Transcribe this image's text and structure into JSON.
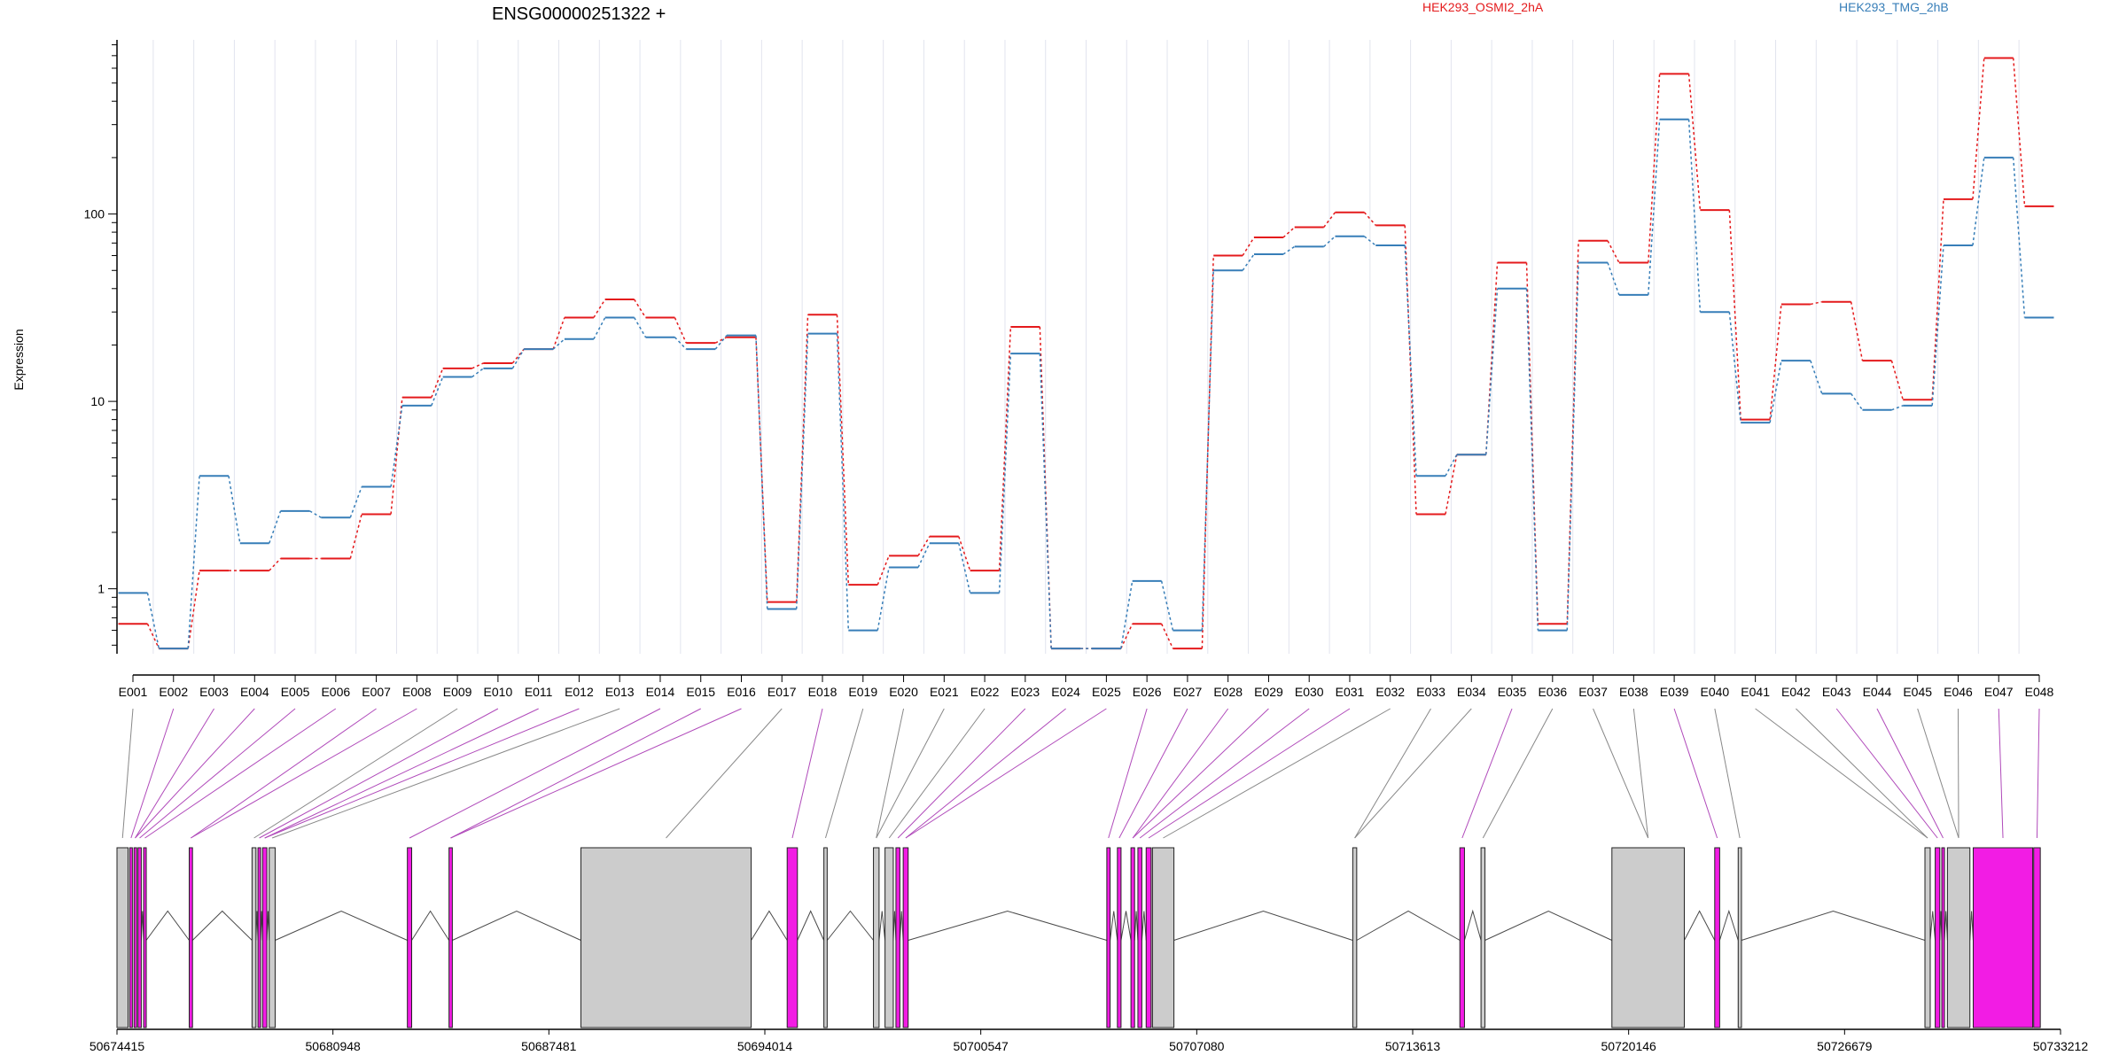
{
  "chart_data": {
    "type": "line",
    "title": "ENSG00000251322 +",
    "ylabel": "Expression",
    "y_scale": "log",
    "ylim": [
      0.45,
      850
    ],
    "y_ticks": [
      1,
      10,
      100
    ],
    "y_tick_labels": [
      "1",
      "10",
      "100"
    ],
    "categories": [
      "E001",
      "E002",
      "E003",
      "E004",
      "E005",
      "E006",
      "E007",
      "E008",
      "E009",
      "E010",
      "E011",
      "E012",
      "E013",
      "E014",
      "E015",
      "E016",
      "E017",
      "E018",
      "E019",
      "E020",
      "E021",
      "E022",
      "E023",
      "E024",
      "E025",
      "E026",
      "E027",
      "E028",
      "E029",
      "E030",
      "E031",
      "E032",
      "E033",
      "E034",
      "E035",
      "E036",
      "E037",
      "E038",
      "E039",
      "E040",
      "E041",
      "E042",
      "E043",
      "E044",
      "E045",
      "E046",
      "E047",
      "E048"
    ],
    "series": [
      {
        "name": "HEK293_OSMI2_2hA",
        "color": "#e41a1c",
        "values": [
          0.65,
          0.48,
          1.25,
          1.25,
          1.45,
          1.45,
          2.5,
          10.5,
          15,
          16,
          19,
          28,
          35,
          28,
          20.5,
          22,
          0.85,
          29,
          1.05,
          1.5,
          1.9,
          1.25,
          25,
          0.48,
          0.48,
          0.65,
          0.48,
          60,
          75,
          85,
          102,
          87,
          2.5,
          5.2,
          55,
          0.65,
          72,
          55,
          560,
          105,
          8,
          33,
          34,
          16.5,
          10.2,
          120,
          680,
          110
        ]
      },
      {
        "name": "HEK293_TMG_2hB",
        "color": "#377eb8",
        "values": [
          0.95,
          0.48,
          4,
          1.75,
          2.6,
          2.4,
          3.5,
          9.5,
          13.5,
          15,
          19,
          21.5,
          28,
          22,
          19,
          22.5,
          0.78,
          23,
          0.6,
          1.3,
          1.75,
          0.95,
          18,
          0.48,
          0.48,
          1.1,
          0.6,
          50,
          61,
          67,
          76,
          68,
          4,
          5.2,
          40,
          0.6,
          55,
          37,
          320,
          30,
          7.7,
          16.5,
          11,
          9,
          9.5,
          68,
          200,
          28
        ]
      }
    ],
    "genomic_axis": {
      "tick_labels": [
        "50674415",
        "50680948",
        "50687481",
        "50694014",
        "50700547",
        "50707080",
        "50713613",
        "50720146",
        "50726679",
        "50733212"
      ]
    },
    "exon_colors": {
      "default": "#cccccc",
      "highlight": "#f21ce4",
      "intron": "#4a4a4a",
      "axis": "#000000",
      "grid": "#e2e4ee"
    }
  }
}
